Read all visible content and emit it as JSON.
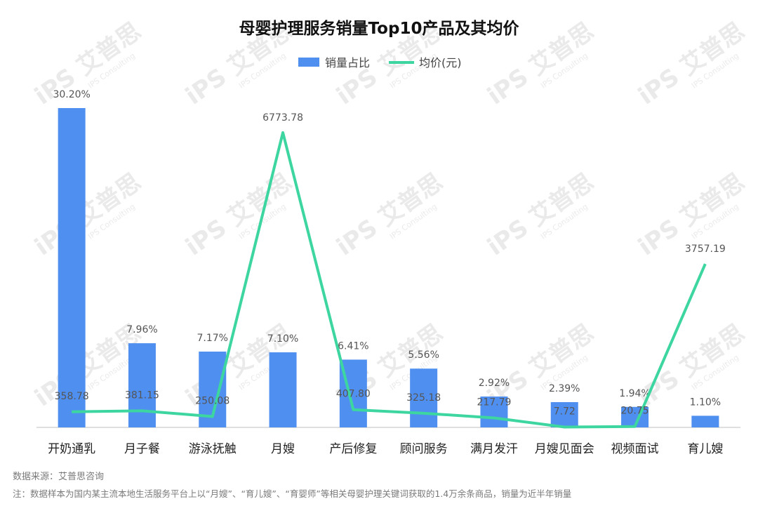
{
  "chart_data": {
    "type": "bar",
    "title": "母婴护理服务销量Top10产品及其均价",
    "categories": [
      "开奶通乳",
      "月子餐",
      "游泳抚触",
      "月嫂",
      "产后修复",
      "顾问服务",
      "满月发汗",
      "月嫂见面会",
      "视频面试",
      "育儿嫂"
    ],
    "series": [
      {
        "name": "销量占比",
        "type": "bar",
        "color": "#4f8ff0",
        "values": [
          30.2,
          7.96,
          7.17,
          7.1,
          6.41,
          5.56,
          2.92,
          2.39,
          1.94,
          1.1
        ],
        "labels": [
          "30.20%",
          "7.96%",
          "7.17%",
          "7.10%",
          "6.41%",
          "5.56%",
          "2.92%",
          "2.39%",
          "1.94%",
          "1.10%"
        ]
      },
      {
        "name": "均价(元)",
        "type": "line",
        "color": "#3dd6a0",
        "values": [
          358.78,
          381.15,
          250.08,
          6773.78,
          407.8,
          325.18,
          217.79,
          7.72,
          20.75,
          3757.19
        ],
        "labels": [
          "358.78",
          "381.15",
          "250.08",
          "6773.78",
          "407.80",
          "325.18",
          "217.79",
          "7.72",
          "20.75",
          "3757.19"
        ]
      }
    ],
    "legend_position": "top-center",
    "grid": false
  },
  "footer": {
    "source": "数据来源：艾普思咨询",
    "note": "注：数据样本为国内某主流本地生活服务平台上以“月嫂”、“育儿嫂”、“育婴师”等相关母婴护理关键词获取的1.4万余条商品，销量为近半年销量"
  },
  "watermark": {
    "logo": "iPS 艾普思",
    "sub": "IPS Consulting",
    "color": "#d9d9d9"
  }
}
